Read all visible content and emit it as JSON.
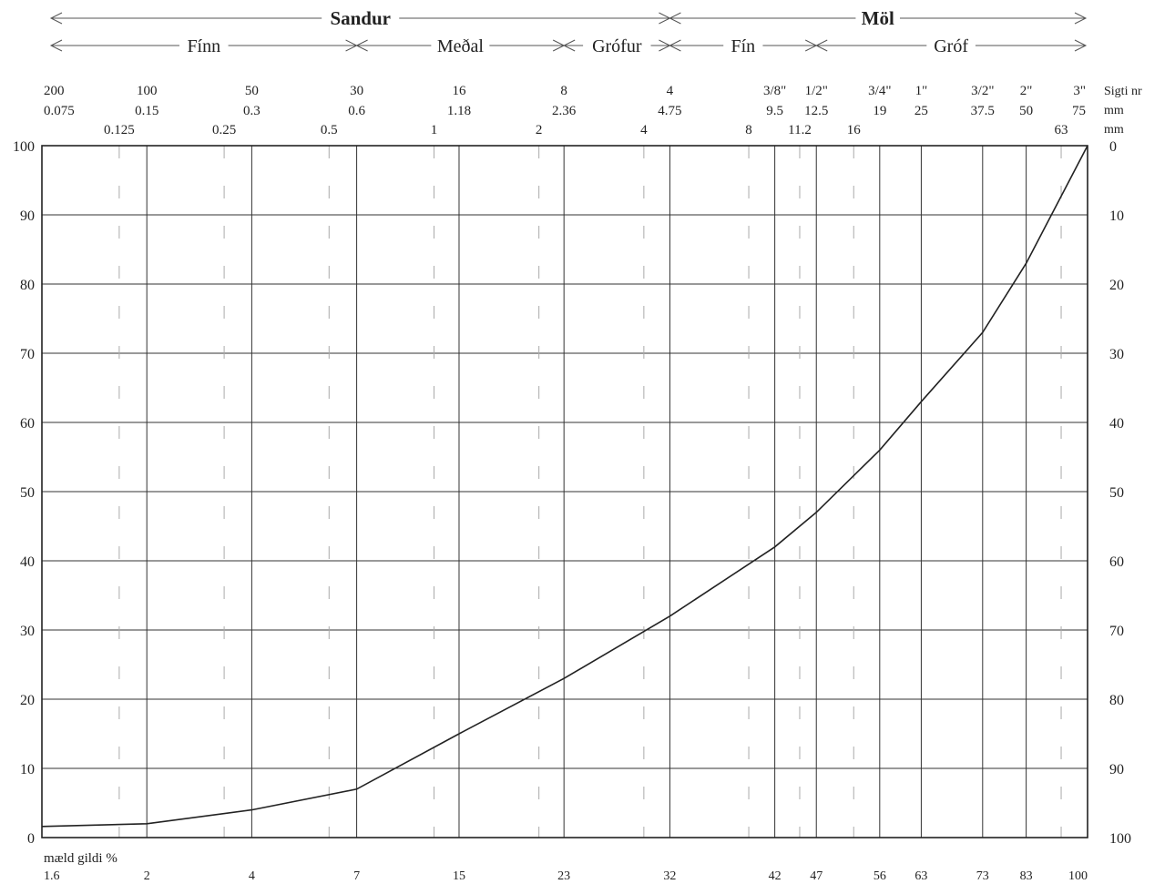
{
  "chart_data": {
    "type": "line",
    "size_header": {
      "major": [
        {
          "label": "Sandur",
          "from_mm": 0.075,
          "to_mm": 4.75
        },
        {
          "label": "Möl",
          "from_mm": 4.75,
          "to_mm": 75
        }
      ],
      "minor": [
        {
          "label": "Fínn",
          "from_mm": 0.075,
          "to_mm": 0.6
        },
        {
          "label": "Meðal",
          "from_mm": 0.6,
          "to_mm": 2.36
        },
        {
          "label": "Grófur",
          "from_mm": 2.36,
          "to_mm": 4.75
        },
        {
          "label": "Fín",
          "from_mm": 4.75,
          "to_mm": 12.5
        },
        {
          "label": "Gróf",
          "from_mm": 12.5,
          "to_mm": 75
        }
      ]
    },
    "sieve_numbers": [
      {
        "label": "200",
        "mm": 0.075
      },
      {
        "label": "100",
        "mm": 0.15
      },
      {
        "label": "50",
        "mm": 0.3
      },
      {
        "label": "30",
        "mm": 0.6
      },
      {
        "label": "16",
        "mm": 1.18
      },
      {
        "label": "8",
        "mm": 2.36
      },
      {
        "label": "4",
        "mm": 4.75
      },
      {
        "label": "3/8\"",
        "mm": 9.5
      },
      {
        "label": "1/2\"",
        "mm": 12.5
      },
      {
        "label": "3/4\"",
        "mm": 19
      },
      {
        "label": "1\"",
        "mm": 25
      },
      {
        "label": "3/2\"",
        "mm": 37.5
      },
      {
        "label": "2\"",
        "mm": 50
      },
      {
        "label": "3\"",
        "mm": 75
      }
    ],
    "sieve_mm_row1": [
      {
        "label": "0.075",
        "mm": 0.075
      },
      {
        "label": "0.15",
        "mm": 0.15
      },
      {
        "label": "0.3",
        "mm": 0.3
      },
      {
        "label": "0.6",
        "mm": 0.6
      },
      {
        "label": "1.18",
        "mm": 1.18
      },
      {
        "label": "2.36",
        "mm": 2.36
      },
      {
        "label": "4.75",
        "mm": 4.75
      },
      {
        "label": "9.5",
        "mm": 9.5
      },
      {
        "label": "12.5",
        "mm": 12.5
      },
      {
        "label": "19",
        "mm": 19
      },
      {
        "label": "25",
        "mm": 25
      },
      {
        "label": "37.5",
        "mm": 37.5
      },
      {
        "label": "50",
        "mm": 50
      },
      {
        "label": "75",
        "mm": 75
      }
    ],
    "sieve_mm_row2": [
      {
        "label": "0.125",
        "mm": 0.125
      },
      {
        "label": "0.25",
        "mm": 0.25
      },
      {
        "label": "0.5",
        "mm": 0.5
      },
      {
        "label": "1",
        "mm": 1
      },
      {
        "label": "2",
        "mm": 2
      },
      {
        "label": "4",
        "mm": 4
      },
      {
        "label": "8",
        "mm": 8
      },
      {
        "label": "11.2",
        "mm": 11.2
      },
      {
        "label": "16",
        "mm": 16
      },
      {
        "label": "63",
        "mm": 63
      }
    ],
    "right_header_labels": [
      "Sigti nr",
      "mm",
      "mm"
    ],
    "x_scale": "log",
    "xlim_mm": [
      0.075,
      75
    ],
    "y_left_ticks": [
      100,
      90,
      80,
      70,
      60,
      50,
      40,
      30,
      20,
      10,
      0
    ],
    "y_right_ticks": [
      0,
      10,
      20,
      30,
      40,
      50,
      60,
      70,
      80,
      90,
      100
    ],
    "ylim": [
      0,
      100
    ],
    "grid": true,
    "measured_label": "mæld gildi %",
    "series": [
      {
        "points": [
          {
            "mm": 0.075,
            "label": "1.6",
            "value": 1.6
          },
          {
            "mm": 0.15,
            "label": "2",
            "value": 2
          },
          {
            "mm": 0.3,
            "label": "4",
            "value": 4
          },
          {
            "mm": 0.6,
            "label": "7",
            "value": 7
          },
          {
            "mm": 1.18,
            "label": "15",
            "value": 15
          },
          {
            "mm": 2.36,
            "label": "23",
            "value": 23
          },
          {
            "mm": 4.75,
            "label": "32",
            "value": 32
          },
          {
            "mm": 9.5,
            "label": "42",
            "value": 42
          },
          {
            "mm": 12.5,
            "label": "47",
            "value": 47
          },
          {
            "mm": 19,
            "label": "56",
            "value": 56
          },
          {
            "mm": 25,
            "label": "63",
            "value": 63
          },
          {
            "mm": 37.5,
            "label": "73",
            "value": 73
          },
          {
            "mm": 50,
            "label": "83",
            "value": 83
          },
          {
            "mm": 75,
            "label": "100",
            "value": 100
          }
        ]
      }
    ]
  }
}
